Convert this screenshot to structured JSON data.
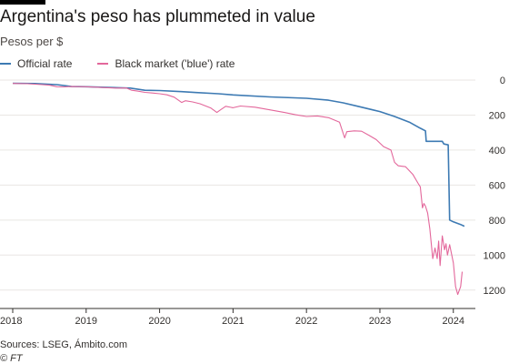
{
  "header": {
    "title": "Argentina's peso has plummeted in value",
    "subtitle": "Pesos per $"
  },
  "footer": {
    "source": "Sources: LSEG, Ámbito.com",
    "credit": "© FT"
  },
  "colors": {
    "official": "#3d7ab3",
    "blue": "#e3679b",
    "grid": "#e9e6e3",
    "baseline": "#33302e"
  },
  "chart_data": {
    "type": "line",
    "title": "Argentina's peso has plummeted in value",
    "subtitle": "Pesos per $",
    "xlabel": "",
    "ylabel": "Pesos per $",
    "y_inverted": true,
    "xlim": [
      2018,
      2024.3
    ],
    "ylim": [
      0,
      1300
    ],
    "x_ticks": [
      2018,
      2019,
      2020,
      2021,
      2022,
      2023,
      2024
    ],
    "y_ticks": [
      0,
      200,
      400,
      600,
      800,
      1000,
      1200
    ],
    "y_tick_labels": [
      "0",
      "200",
      "400",
      "600",
      "800",
      "1000",
      "1200"
    ],
    "x_tick_labels": [
      "2018",
      "2019",
      "2020",
      "2021",
      "2022",
      "2023",
      "2024"
    ],
    "grid": true,
    "legend_position": "top-left",
    "series": [
      {
        "name": "Official rate",
        "color": "#3d7ab3",
        "points": [
          [
            2018.0,
            18
          ],
          [
            2018.3,
            20
          ],
          [
            2018.6,
            26
          ],
          [
            2018.8,
            37
          ],
          [
            2019.0,
            38
          ],
          [
            2019.3,
            42
          ],
          [
            2019.6,
            46
          ],
          [
            2019.8,
            58
          ],
          [
            2020.0,
            60
          ],
          [
            2020.3,
            66
          ],
          [
            2020.5,
            71
          ],
          [
            2020.8,
            78
          ],
          [
            2021.0,
            85
          ],
          [
            2021.5,
            96
          ],
          [
            2022.0,
            104
          ],
          [
            2022.3,
            115
          ],
          [
            2022.5,
            130
          ],
          [
            2022.7,
            150
          ],
          [
            2022.9,
            170
          ],
          [
            2023.0,
            180
          ],
          [
            2023.2,
            208
          ],
          [
            2023.4,
            240
          ],
          [
            2023.55,
            275
          ],
          [
            2023.62,
            290
          ],
          [
            2023.63,
            350
          ],
          [
            2023.65,
            350
          ],
          [
            2023.85,
            350
          ],
          [
            2023.87,
            365
          ],
          [
            2023.93,
            370
          ],
          [
            2023.95,
            800
          ],
          [
            2024.0,
            810
          ],
          [
            2024.1,
            825
          ],
          [
            2024.15,
            835
          ]
        ]
      },
      {
        "name": "Black market ('blue') rate",
        "color": "#e3679b",
        "points": [
          [
            2018.0,
            19
          ],
          [
            2018.2,
            21
          ],
          [
            2018.4,
            26
          ],
          [
            2018.5,
            29
          ],
          [
            2018.6,
            38
          ],
          [
            2018.7,
            39
          ],
          [
            2018.8,
            37
          ],
          [
            2019.0,
            38
          ],
          [
            2019.2,
            42
          ],
          [
            2019.4,
            46
          ],
          [
            2019.55,
            45
          ],
          [
            2019.62,
            58
          ],
          [
            2019.7,
            63
          ],
          [
            2019.8,
            70
          ],
          [
            2019.9,
            74
          ],
          [
            2020.0,
            78
          ],
          [
            2020.1,
            84
          ],
          [
            2020.2,
            98
          ],
          [
            2020.3,
            128
          ],
          [
            2020.35,
            118
          ],
          [
            2020.45,
            125
          ],
          [
            2020.55,
            135
          ],
          [
            2020.7,
            160
          ],
          [
            2020.78,
            185
          ],
          [
            2020.83,
            170
          ],
          [
            2020.9,
            150
          ],
          [
            2021.0,
            158
          ],
          [
            2021.1,
            148
          ],
          [
            2021.3,
            155
          ],
          [
            2021.5,
            170
          ],
          [
            2021.7,
            185
          ],
          [
            2021.85,
            198
          ],
          [
            2022.0,
            208
          ],
          [
            2022.15,
            205
          ],
          [
            2022.3,
            215
          ],
          [
            2022.45,
            240
          ],
          [
            2022.52,
            330
          ],
          [
            2022.55,
            295
          ],
          [
            2022.65,
            290
          ],
          [
            2022.75,
            292
          ],
          [
            2022.85,
            315
          ],
          [
            2022.95,
            340
          ],
          [
            2023.05,
            380
          ],
          [
            2023.15,
            400
          ],
          [
            2023.2,
            470
          ],
          [
            2023.25,
            490
          ],
          [
            2023.35,
            495
          ],
          [
            2023.45,
            540
          ],
          [
            2023.52,
            590
          ],
          [
            2023.55,
            610
          ],
          [
            2023.58,
            730
          ],
          [
            2023.6,
            705
          ],
          [
            2023.62,
            720
          ],
          [
            2023.65,
            760
          ],
          [
            2023.68,
            850
          ],
          [
            2023.72,
            1020
          ],
          [
            2023.75,
            960
          ],
          [
            2023.78,
            1020
          ],
          [
            2023.8,
            920
          ],
          [
            2023.82,
            1060
          ],
          [
            2023.85,
            890
          ],
          [
            2023.88,
            970
          ],
          [
            2023.9,
            935
          ],
          [
            2023.92,
            1000
          ],
          [
            2023.95,
            940
          ],
          [
            2024.0,
            1045
          ],
          [
            2024.03,
            1180
          ],
          [
            2024.06,
            1225
          ],
          [
            2024.1,
            1180
          ],
          [
            2024.12,
            1095
          ]
        ]
      }
    ]
  }
}
